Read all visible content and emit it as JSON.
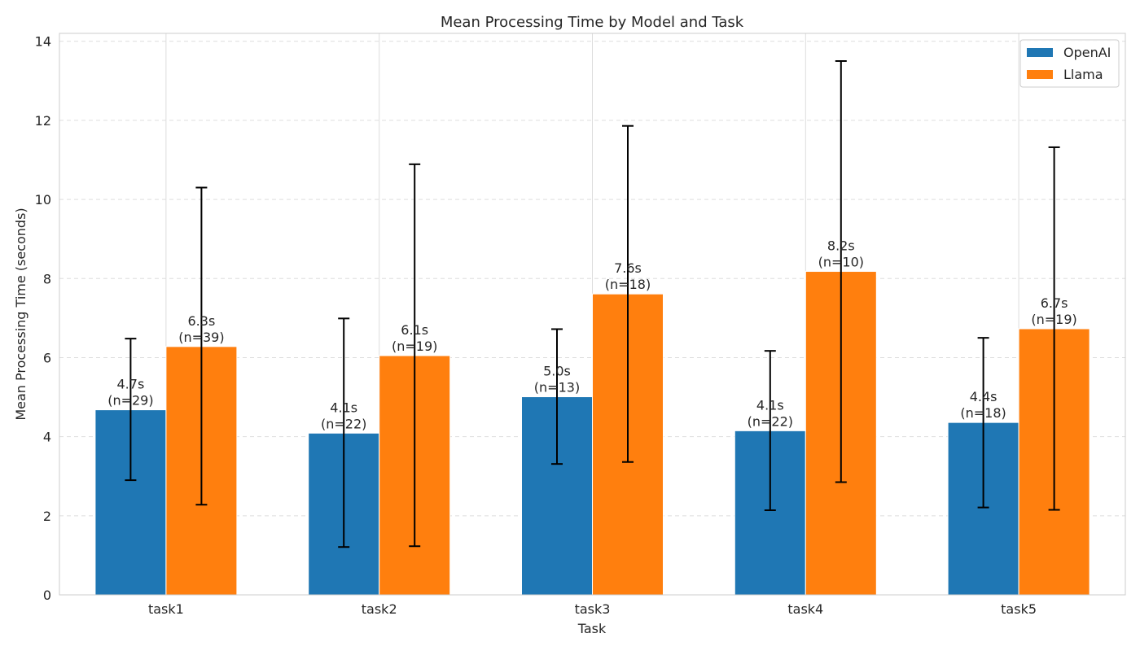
{
  "chart_data": {
    "type": "bar",
    "title": "Mean Processing Time by Model and Task",
    "xlabel": "Task",
    "ylabel": "Mean Processing Time (seconds)",
    "ylim": [
      0,
      14.2
    ],
    "yticks": [
      "0",
      "2",
      "4",
      "6",
      "8",
      "10",
      "12",
      "14"
    ],
    "categories": [
      "task1",
      "task2",
      "task3",
      "task4",
      "task5"
    ],
    "grid": true,
    "legend_position": "top-right",
    "series": [
      {
        "name": "OpenAI",
        "color": "#1f77b4",
        "values": [
          4.68,
          4.09,
          5.01,
          4.15,
          4.36
        ],
        "err_low": [
          2.9,
          1.21,
          3.31,
          2.14,
          2.21
        ],
        "err_high": [
          6.48,
          6.99,
          6.72,
          6.17,
          6.5
        ],
        "labels": [
          "4.7s\n(n=29)",
          "4.1s\n(n=22)",
          "5.0s\n(n=13)",
          "4.1s\n(n=22)",
          "4.4s\n(n=18)"
        ]
      },
      {
        "name": "Llama",
        "color": "#ff7f0e",
        "values": [
          6.28,
          6.05,
          7.61,
          8.18,
          6.73
        ],
        "err_low": [
          2.28,
          1.23,
          3.36,
          2.85,
          2.15
        ],
        "err_high": [
          10.3,
          10.89,
          11.86,
          13.5,
          11.32
        ],
        "labels": [
          "6.3s\n(n=39)",
          "6.1s\n(n=19)",
          "7.6s\n(n=18)",
          "8.2s\n(n=10)",
          "6.7s\n(n=19)"
        ]
      }
    ]
  }
}
